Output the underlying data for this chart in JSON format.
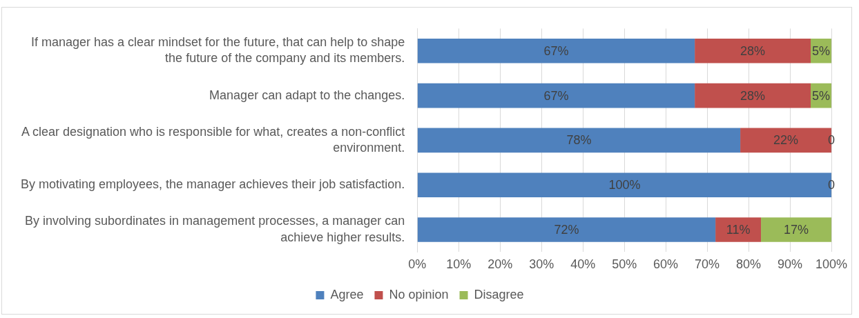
{
  "chart_data": {
    "type": "bar",
    "orientation": "horizontal",
    "stacked": true,
    "categories": [
      "If manager has a clear mindset for the future, that can help to shape the future of the company and its members.",
      "Manager can adapt to the changes.",
      "A clear designation who is responsible for what, creates a non-conflict environment.",
      "By motivating employees, the manager achieves their job satisfaction.",
      "By involving subordinates in management processes, a manager can achieve higher results."
    ],
    "series": [
      {
        "name": "Agree",
        "color": "#4f81bd",
        "values": [
          67,
          67,
          78,
          100,
          72
        ],
        "value_labels": [
          "67%",
          "67%",
          "78%",
          "100%",
          "72%"
        ]
      },
      {
        "name": "No opinion",
        "color": "#c0504d",
        "values": [
          28,
          28,
          22,
          0,
          11
        ],
        "value_labels": [
          "28%",
          "28%",
          "22%",
          null,
          "11%"
        ]
      },
      {
        "name": "Disagree",
        "color": "#9bbb59",
        "values": [
          5,
          5,
          0,
          0,
          17
        ],
        "value_labels": [
          "5%",
          "5%",
          "0",
          "0",
          "17%"
        ]
      }
    ],
    "xlim": [
      0,
      100
    ],
    "xticks": [
      {
        "value": 0,
        "label": "0%"
      },
      {
        "value": 10,
        "label": "10%"
      },
      {
        "value": 20,
        "label": "20%"
      },
      {
        "value": 30,
        "label": "30%"
      },
      {
        "value": 40,
        "label": "40%"
      },
      {
        "value": 50,
        "label": "50%"
      },
      {
        "value": 60,
        "label": "60%"
      },
      {
        "value": 70,
        "label": "70%"
      },
      {
        "value": 80,
        "label": "80%"
      },
      {
        "value": 90,
        "label": "90%"
      },
      {
        "value": 100,
        "label": "100%"
      }
    ],
    "grid": "x",
    "legend": "bottom"
  }
}
